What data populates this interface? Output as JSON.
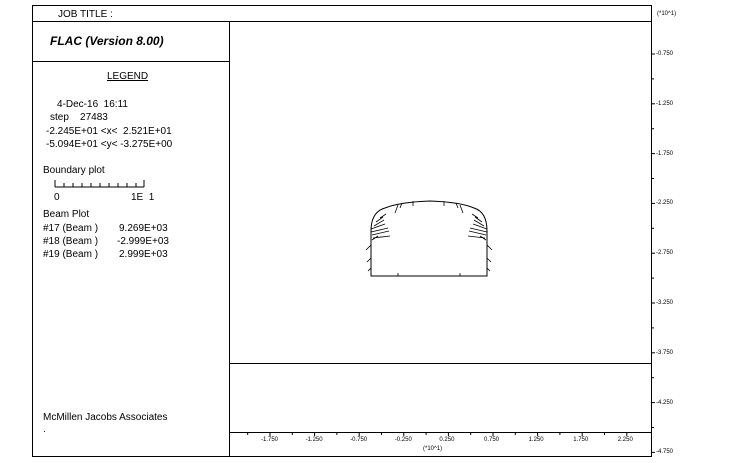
{
  "header": {
    "job_title": "JOB TITLE :"
  },
  "program": {
    "title": "FLAC (Version 8.00)"
  },
  "legend": {
    "heading": "LEGEND",
    "date_time": "4-Dec-16  16:11",
    "step": "step    27483",
    "x_range": "-2.245E+01 <x<  2.521E+01",
    "y_range": "-5.094E+01 <y< -3.275E+00",
    "boundary_label": "Boundary plot",
    "scale_zero": "0",
    "scale_max": "1E  1",
    "beam_plot_label": "Beam Plot",
    "beams": [
      {
        "id": "#17 (Beam )",
        "value": "9.269E+03"
      },
      {
        "id": "#18 (Beam )",
        "value": "-2.999E+03"
      },
      {
        "id": "#19 (Beam )",
        "value": "2.999E+03"
      }
    ],
    "footer": "McMillen Jacobs Associates",
    "footer_mark": "."
  },
  "axes": {
    "multiplier_y": "(*10^1)",
    "multiplier_x": "(*10^1)",
    "y_ticks": [
      "-0.750",
      "-1.250",
      "-1.750",
      "-2.250",
      "-2.750",
      "-3.250",
      "-3.750",
      "-4.250",
      "-4.750"
    ],
    "x_ticks": [
      "-1.750",
      "-1.250",
      "-0.750",
      "-0.250",
      "0.250",
      "0.750",
      "1.250",
      "1.750",
      "2.250"
    ]
  }
}
